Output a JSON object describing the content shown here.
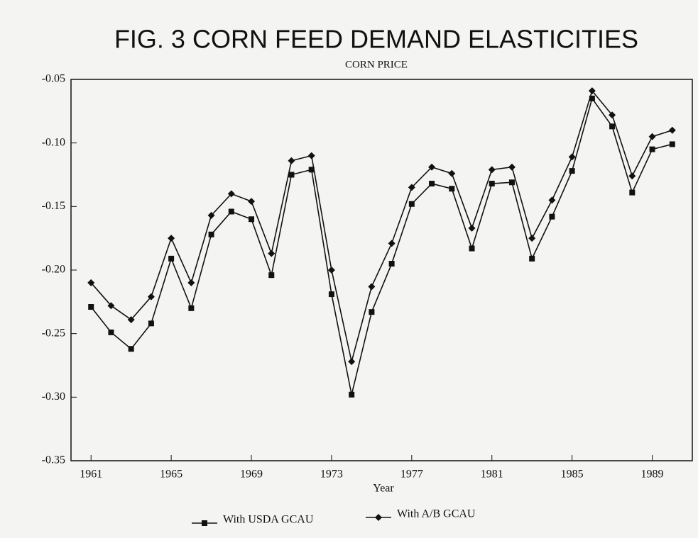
{
  "chart_data": {
    "type": "line",
    "title": "FIG. 3 CORN FEED DEMAND ELASTICITIES",
    "subtitle": "CORN PRICE",
    "x_label": "Year",
    "x": [
      1961,
      1962,
      1963,
      1964,
      1965,
      1966,
      1967,
      1968,
      1969,
      1970,
      1971,
      1972,
      1973,
      1974,
      1975,
      1976,
      1977,
      1978,
      1979,
      1980,
      1981,
      1982,
      1983,
      1984,
      1985,
      1986,
      1987,
      1988,
      1989,
      1990
    ],
    "xlim": [
      1960,
      1991
    ],
    "xticks": [
      1961,
      1965,
      1969,
      1973,
      1977,
      1981,
      1985,
      1989
    ],
    "ylim": [
      -0.35,
      -0.05
    ],
    "yticks": [
      -0.35,
      {
        "value": -0.3,
        "label": "-0.30"
      },
      -0.25,
      {
        "value": -0.2,
        "label": "-0.20"
      },
      -0.15,
      {
        "value": -0.1,
        "label": "-0.10"
      },
      -0.05
    ],
    "grid": false,
    "legend": "bottom",
    "series": [
      {
        "name": "With USDA GCAU",
        "color": "#111111",
        "marker": "square",
        "values": [
          -0.229,
          -0.249,
          -0.262,
          -0.242,
          -0.191,
          -0.23,
          -0.172,
          -0.154,
          -0.16,
          -0.204,
          -0.125,
          -0.121,
          -0.219,
          -0.298,
          -0.233,
          -0.195,
          -0.148,
          -0.132,
          -0.136,
          -0.183,
          -0.132,
          -0.131,
          -0.191,
          -0.158,
          -0.122,
          -0.065,
          -0.087,
          -0.139,
          -0.105,
          -0.101
        ]
      },
      {
        "name": "With A/B GCAU",
        "color": "#111111",
        "marker": "diamond",
        "values": [
          -0.21,
          -0.228,
          -0.239,
          -0.221,
          -0.175,
          -0.21,
          -0.157,
          -0.14,
          -0.146,
          -0.187,
          -0.114,
          -0.11,
          -0.2,
          -0.272,
          -0.213,
          -0.179,
          -0.135,
          -0.119,
          -0.124,
          -0.167,
          -0.121,
          -0.119,
          -0.175,
          -0.145,
          -0.111,
          -0.059,
          -0.078,
          -0.126,
          -0.095,
          -0.09
        ]
      }
    ]
  }
}
